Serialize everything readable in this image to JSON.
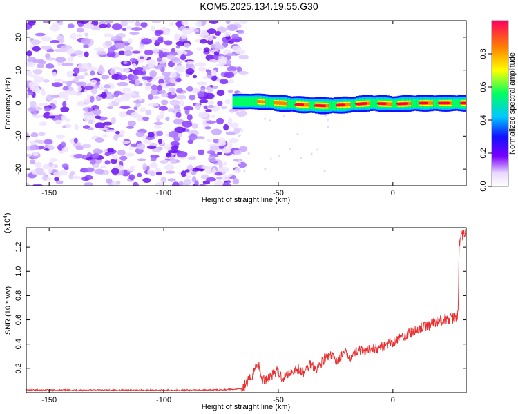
{
  "title": "KOM5.2025.134.19.55.G30",
  "chart_data": [
    {
      "type": "heatmap",
      "xlabel": "Height of straight line (km)",
      "ylabel": "Frequency (Hz)",
      "xlim": [
        -160,
        32
      ],
      "ylim": [
        -25,
        25
      ],
      "xticks": [
        -150,
        -100,
        -50,
        0
      ],
      "yticks": [
        -20,
        -10,
        0,
        10,
        20
      ],
      "xtick_labels": [
        "-150",
        "-100",
        "-50",
        "0"
      ],
      "ytick_labels": [
        "-20",
        "-10",
        "0",
        "10",
        "20"
      ],
      "noise_region_x": [
        -160,
        -65
      ],
      "signal_band": {
        "x_start": -70,
        "x_end": 32,
        "frequency": 0,
        "center_points": [
          [
            -70,
            0.5
          ],
          [
            -60,
            0.5
          ],
          [
            -50,
            0
          ],
          [
            -40,
            -0.5
          ],
          [
            -30,
            -0.8
          ],
          [
            -20,
            -0.5
          ],
          [
            -10,
            0
          ],
          [
            0,
            -0.3
          ],
          [
            10,
            0
          ],
          [
            20,
            0
          ],
          [
            30,
            0
          ]
        ]
      },
      "colorbar": {
        "label": "Normalized spectral amplitude",
        "range": [
          0,
          1
        ],
        "ticks": [
          0.0,
          0.2,
          0.4,
          0.6,
          0.8
        ],
        "tick_labels": [
          "0.0",
          "0.2",
          "0.4",
          "0.6",
          "0.8"
        ],
        "colormap": "rainbow-white"
      }
    },
    {
      "type": "line",
      "xlabel": "Height of straight line (km)",
      "ylabel": "SNR (10 * v/v)",
      "y_multiplier": "(x10",
      "y_multiplier_exp": "4",
      "xlim": [
        -160,
        32
      ],
      "ylim": [
        0,
        1.36
      ],
      "xticks": [
        -150,
        -100,
        -50,
        0
      ],
      "yticks": [
        0.2,
        0.4,
        0.6,
        0.8,
        1.0,
        1.2
      ],
      "xtick_labels": [
        "-150",
        "-100",
        "-50",
        "0"
      ],
      "ytick_labels": [
        "0.2",
        "0.4",
        "0.6",
        "0.8",
        "1.0",
        "1.2"
      ],
      "line_color": "#e83030",
      "series": [
        {
          "points": [
            [
              -160,
              0.02
            ],
            [
              -140,
              0.02
            ],
            [
              -120,
              0.02
            ],
            [
              -100,
              0.02
            ],
            [
              -80,
              0.02
            ],
            [
              -66,
              0.03
            ],
            [
              -62,
              0.12
            ],
            [
              -59,
              0.25
            ],
            [
              -57,
              0.1
            ],
            [
              -54,
              0.13
            ],
            [
              -51,
              0.18
            ],
            [
              -48,
              0.12
            ],
            [
              -45,
              0.17
            ],
            [
              -42,
              0.2
            ],
            [
              -39,
              0.16
            ],
            [
              -36,
              0.24
            ],
            [
              -33,
              0.2
            ],
            [
              -30,
              0.28
            ],
            [
              -27,
              0.3
            ],
            [
              -24,
              0.26
            ],
            [
              -21,
              0.33
            ],
            [
              -18,
              0.3
            ],
            [
              -15,
              0.36
            ],
            [
              -12,
              0.32
            ],
            [
              -9,
              0.38
            ],
            [
              -6,
              0.36
            ],
            [
              -3,
              0.4
            ],
            [
              0,
              0.42
            ],
            [
              3,
              0.45
            ],
            [
              6,
              0.48
            ],
            [
              9,
              0.5
            ],
            [
              12,
              0.53
            ],
            [
              15,
              0.55
            ],
            [
              18,
              0.58
            ],
            [
              21,
              0.6
            ],
            [
              24,
              0.6
            ],
            [
              27,
              0.62
            ],
            [
              28.5,
              0.65
            ],
            [
              29,
              1.25
            ],
            [
              30,
              1.28
            ],
            [
              31,
              1.32
            ],
            [
              32,
              1.3
            ]
          ]
        }
      ]
    }
  ]
}
